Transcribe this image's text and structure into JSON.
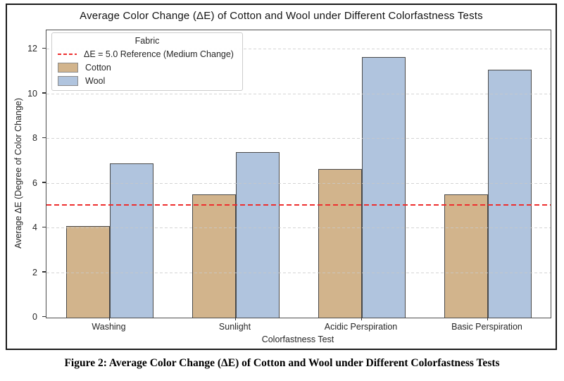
{
  "figure": {
    "caption": "Figure 2: Average Color Change (ΔE) of Cotton and Wool under Different Colorfastness Tests"
  },
  "chart_data": {
    "type": "bar",
    "title": "Average Color Change (ΔE) of Cotton and Wool under Different Colorfastness Tests",
    "xlabel": "Colorfastness Test",
    "ylabel": "Average ΔE (Degree of Color Change)",
    "categories": [
      "Washing",
      "Sunlight",
      "Acidic Perspiration",
      "Basic Perspiration"
    ],
    "series": [
      {
        "name": "Cotton",
        "color": "#d2b48c",
        "values": [
          4.1,
          5.5,
          6.65,
          5.5
        ]
      },
      {
        "name": "Wool",
        "color": "#b0c4de",
        "values": [
          6.9,
          7.4,
          11.65,
          11.1
        ]
      }
    ],
    "reference_line": {
      "value": 5.0,
      "label": "ΔE = 5.0 Reference (Medium Change)",
      "color": "#ee2e2e",
      "style": "dashed"
    },
    "yticks": [
      0,
      2,
      4,
      6,
      8,
      10,
      12
    ],
    "ylim": [
      0,
      12.85
    ],
    "grid": true,
    "legend": {
      "title": "Fabric",
      "position": "upper left",
      "entries": [
        {
          "swatch": "dashed-line",
          "label": "ΔE = 5.0 Reference (Medium Change)"
        },
        {
          "swatch": "cotton",
          "label": "Cotton"
        },
        {
          "swatch": "wool",
          "label": "Wool"
        }
      ]
    },
    "colors": {
      "bar_edge": "#4a4a4a",
      "grid": "#c9c9c9",
      "axis_border": "#4d4d4d"
    }
  }
}
